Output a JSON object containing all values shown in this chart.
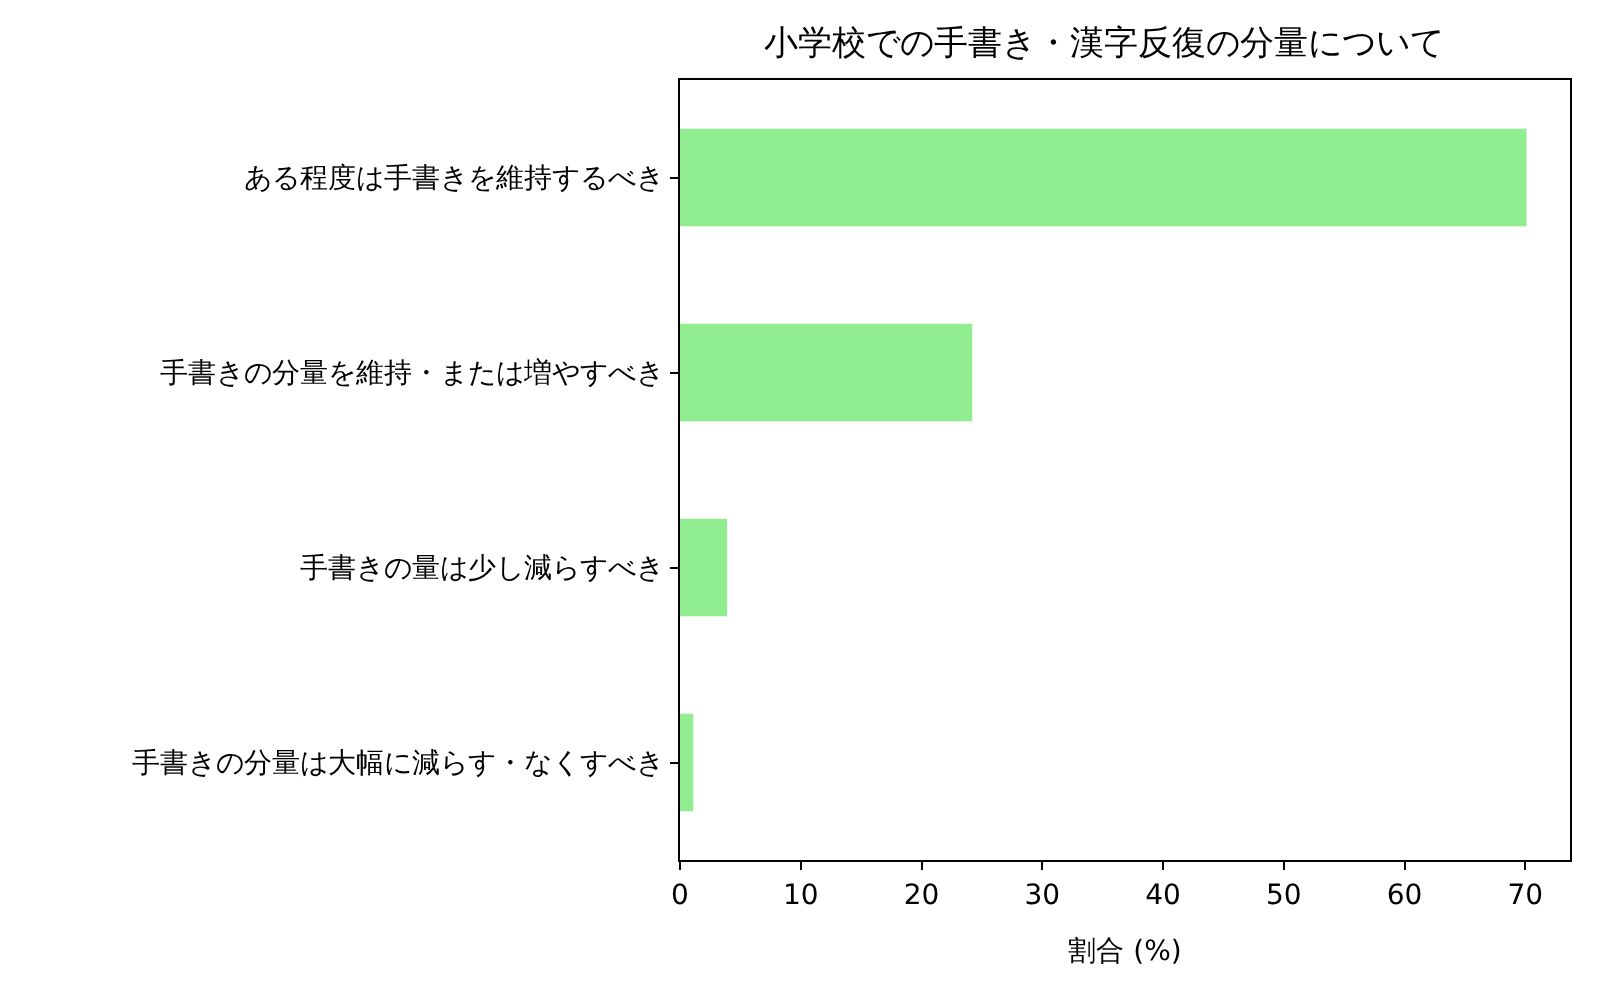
{
  "chart_data": {
    "type": "bar",
    "orientation": "horizontal",
    "title": "小学校での手書き・漢字反復の分量について",
    "xlabel": "割合 (%)",
    "categories": [
      "ある程度は手書きを維持するべき",
      "手書きの分量を維持・または増やすべき",
      "手書きの量は少し減らすべき",
      "手書きの分量は大幅に減らす・なくすべき"
    ],
    "values": [
      70.1,
      24.2,
      3.9,
      1.1
    ],
    "color": "#90ee90",
    "xlim": [
      0,
      73.7
    ],
    "xticks": [
      0,
      10,
      20,
      30,
      40,
      50,
      60,
      70
    ]
  }
}
